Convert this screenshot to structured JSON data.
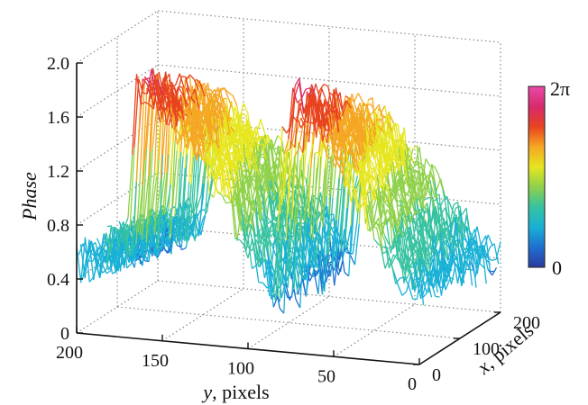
{
  "chart_data": {
    "type": "surface3d",
    "z_axis": {
      "label": "Phase",
      "ticks": [
        "0",
        "0.4",
        "0.8",
        "1.2",
        "1.6",
        "2.0"
      ],
      "range": [
        0,
        2.0
      ]
    },
    "y_axis": {
      "label_var": "y",
      "label_unit": ", pixels",
      "ticks": [
        "200",
        "150",
        "100",
        "50",
        "0"
      ],
      "range": [
        0,
        200
      ]
    },
    "x_axis": {
      "label_var": "x",
      "label_unit": ", pixels",
      "ticks": [
        "0",
        "100",
        "200"
      ],
      "range": [
        0,
        200
      ]
    },
    "colorbar": {
      "max_label": "2π",
      "min_label": "0",
      "colors": [
        "#2b3a9e",
        "#1f6fd0",
        "#19b1d6",
        "#36c2a0",
        "#8fd14a",
        "#e6e61f",
        "#f5a623",
        "#e8431f",
        "#d62a6e",
        "#e94aa8"
      ]
    },
    "grid": true,
    "surface_profile": {
      "description_free": true,
      "y_points": [
        200,
        190,
        180,
        170,
        165,
        160,
        150,
        140,
        130,
        120,
        110,
        100,
        90,
        85,
        80,
        75,
        70,
        60,
        50,
        40,
        30,
        20,
        10,
        0
      ],
      "phase_at_x0": [
        0.55,
        0.55,
        0.65,
        0.75,
        1.85,
        1.9,
        1.75,
        1.6,
        1.45,
        1.25,
        1.0,
        0.75,
        0.5,
        0.4,
        1.5,
        1.85,
        1.9,
        1.75,
        1.55,
        1.3,
        1.05,
        0.85,
        0.65,
        0.6
      ]
    }
  }
}
